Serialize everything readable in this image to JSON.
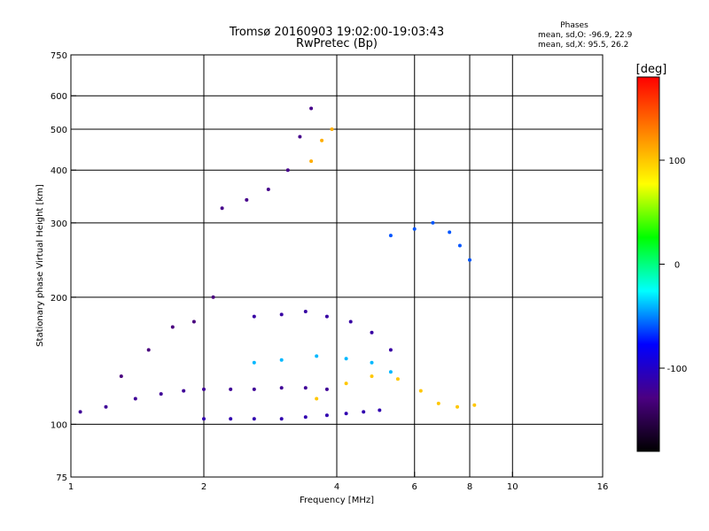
{
  "chart_data": {
    "type": "scatter",
    "title": "Tromsø 20160903 19:02:00-19:03:43",
    "subtitle": "RwPretec (Bp)",
    "xlabel": "Frequency [MHz]",
    "ylabel": "Stationary phase Virtual Height [km]",
    "x_scale": "log",
    "y_scale": "log",
    "xlim": [
      1,
      16
    ],
    "ylim": [
      75,
      750
    ],
    "x_ticks": [
      1,
      2,
      4,
      6,
      8,
      10,
      16
    ],
    "y_ticks": [
      75,
      100,
      200,
      300,
      400,
      500,
      600,
      750
    ],
    "grid_x": [
      2,
      4,
      6,
      8,
      10
    ],
    "grid_y": [
      100,
      200,
      300,
      400,
      500,
      600
    ],
    "grid": true,
    "stats": {
      "header": "Phases",
      "line_o": "mean, sd,O: -96.9, 22.9",
      "line_x": "mean, sd,X:  95.5, 26.2"
    },
    "colorbar": {
      "label": "[deg]",
      "range": [
        -180,
        180
      ],
      "ticks": [
        100,
        0,
        -100
      ],
      "colors": [
        "#000000",
        "#4b0082",
        "#0000ff",
        "#00ffff",
        "#00ff00",
        "#ffff00",
        "#ff8000",
        "#ff0000"
      ]
    },
    "series": [
      {
        "x": [
          1.05,
          1.2,
          1.4,
          1.6,
          1.8,
          2.0,
          2.3,
          2.6,
          3.0,
          3.4,
          3.8
        ],
        "y": [
          107,
          110,
          115,
          118,
          120,
          121,
          121,
          121,
          122,
          122,
          121
        ],
        "phase": -120
      },
      {
        "x": [
          2.0,
          2.3,
          2.6,
          3.0,
          3.4,
          3.8,
          4.2,
          4.6,
          5.0
        ],
        "y": [
          103,
          103,
          103,
          103,
          104,
          105,
          106,
          107,
          108
        ],
        "phase": -110
      },
      {
        "x": [
          1.3,
          1.5,
          1.7,
          1.9,
          2.1
        ],
        "y": [
          130,
          150,
          170,
          175,
          200
        ],
        "phase": -130
      },
      {
        "x": [
          2.2,
          2.5,
          2.8,
          3.1,
          3.3,
          3.5
        ],
        "y": [
          325,
          340,
          360,
          400,
          480,
          560
        ],
        "phase": -125
      },
      {
        "x": [
          2.6,
          3.0,
          3.4,
          3.8,
          4.3,
          4.8,
          5.3
        ],
        "y": [
          180,
          182,
          185,
          180,
          175,
          165,
          150
        ],
        "phase": -115
      },
      {
        "x": [
          2.6,
          3.0,
          3.6,
          4.2,
          4.8,
          5.3
        ],
        "y": [
          140,
          142,
          145,
          143,
          140,
          133
        ],
        "phase": -40
      },
      {
        "x": [
          3.6,
          4.2,
          4.8,
          5.5,
          6.2,
          6.8,
          7.5,
          8.2
        ],
        "y": [
          115,
          125,
          130,
          128,
          120,
          112,
          110,
          111
        ],
        "phase": 100
      },
      {
        "x": [
          3.5,
          3.7,
          3.9
        ],
        "y": [
          420,
          470,
          500
        ],
        "phase": 110
      },
      {
        "x": [
          5.3,
          6.0,
          6.6,
          7.2,
          7.6,
          8.0
        ],
        "y": [
          280,
          290,
          300,
          285,
          265,
          245
        ],
        "phase": -60
      }
    ]
  }
}
